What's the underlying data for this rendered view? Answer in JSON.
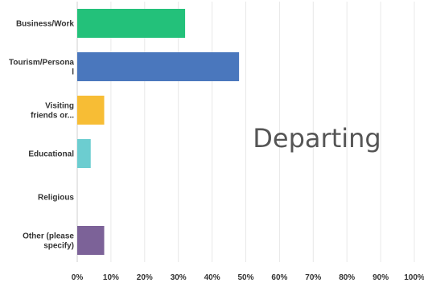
{
  "chart_data": {
    "type": "bar",
    "orientation": "horizontal",
    "categories": [
      [
        "Business/Work"
      ],
      [
        "Tourism/Persona",
        "l"
      ],
      [
        "Visiting",
        "friends or..."
      ],
      [
        "Educational"
      ],
      [
        "Religious"
      ],
      [
        "Other (please",
        "specify)"
      ]
    ],
    "values": [
      32,
      48,
      8,
      4,
      0,
      8
    ],
    "colors": [
      "#23c17a",
      "#4a77bd",
      "#f7bd35",
      "#6ccdd0",
      "#cccccc",
      "#7c6298"
    ],
    "xlim": [
      0,
      100
    ],
    "tick_labels": [
      "0%",
      "10%",
      "20%",
      "30%",
      "40%",
      "50%",
      "60%",
      "70%",
      "80%",
      "90%",
      "100%"
    ],
    "annotation": "Departing",
    "grid": true
  }
}
